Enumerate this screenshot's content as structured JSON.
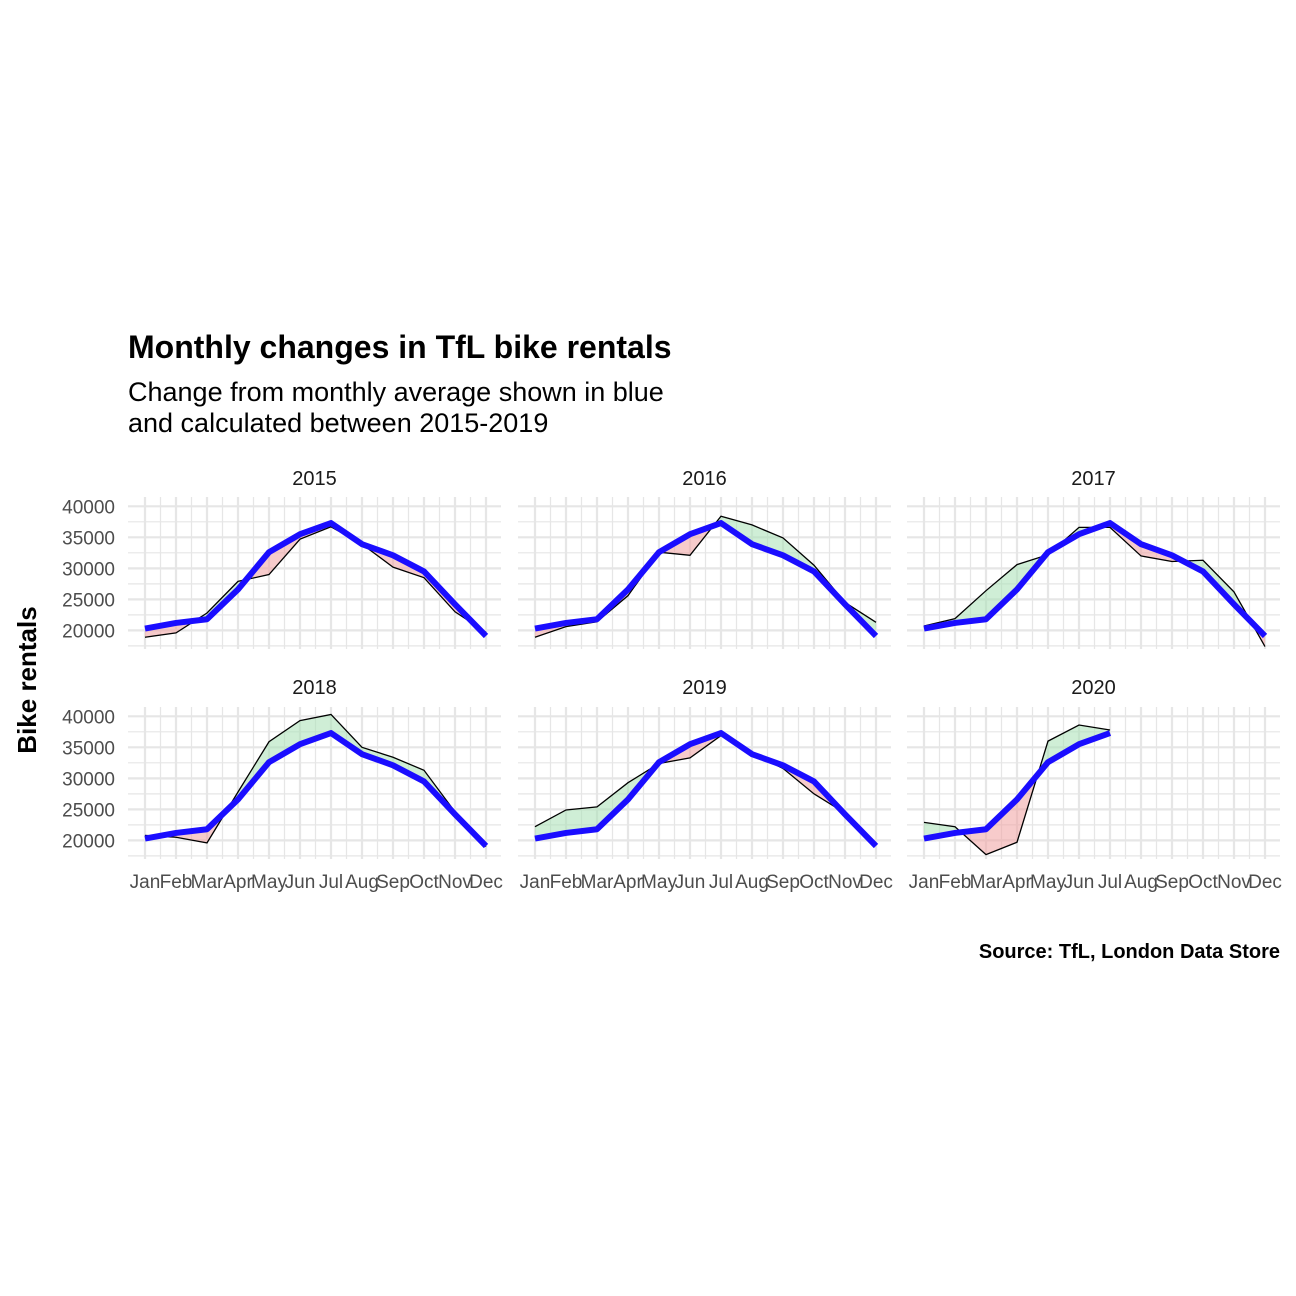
{
  "chart_data": {
    "type": "line",
    "title": "Monthly changes in TfL bike rentals",
    "subtitle_lines": [
      "Change from monthly average shown in blue",
      "and calculated between 2015-2019"
    ],
    "ylabel": "Bike rentals",
    "caption": "Source: TfL, London Data Store",
    "months": [
      "Jan",
      "Feb",
      "Mar",
      "Apr",
      "May",
      "Jun",
      "Jul",
      "Aug",
      "Sep",
      "Oct",
      "Nov",
      "Dec"
    ],
    "yticks": [
      20000,
      25000,
      30000,
      35000,
      40000
    ],
    "ylim": [
      17000,
      41500
    ],
    "grid": true,
    "colors": {
      "average": "#1a0dff",
      "above": "#a8e0b4",
      "below": "#f0a0a0",
      "actual": "#000000",
      "grid": "#e6e6e6"
    },
    "average": [
      20300,
      21200,
      21800,
      26600,
      32600,
      35500,
      37300,
      33900,
      32100,
      29500,
      24200,
      19100
    ],
    "panels": [
      {
        "year": "2015",
        "values": [
          18900,
          19600,
          22800,
          27900,
          29000,
          34700,
          36700,
          33900,
          30200,
          28500,
          23000,
          19700
        ]
      },
      {
        "year": "2016",
        "values": [
          18900,
          20600,
          21400,
          25600,
          32600,
          32100,
          38400,
          37000,
          34900,
          30500,
          24500,
          21300
        ]
      },
      {
        "year": "2017",
        "values": [
          20700,
          21900,
          26400,
          30600,
          32200,
          36600,
          36600,
          32000,
          31100,
          31300,
          26200,
          17400
        ]
      },
      {
        "year": "2018",
        "values": [
          20800,
          20500,
          19600,
          27800,
          35900,
          39300,
          40300,
          35000,
          33400,
          31300,
          24600,
          19000
        ]
      },
      {
        "year": "2019",
        "values": [
          22200,
          24900,
          25400,
          29300,
          32400,
          33300,
          36900,
          34000,
          31600,
          27500,
          24400,
          19600
        ]
      },
      {
        "year": "2020",
        "values": [
          22900,
          22200,
          17700,
          19700,
          36000,
          38600,
          37800
        ]
      }
    ]
  }
}
